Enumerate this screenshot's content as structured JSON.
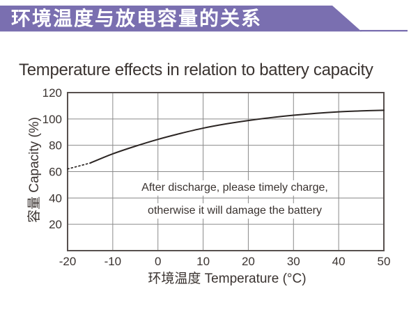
{
  "banner": {
    "label": "环境温度与放电容量的关系",
    "bg_color": "#7a6fb0",
    "text_color": "#ffffff"
  },
  "title": "Temperature effects in relation to battery capacity",
  "chart_data": {
    "type": "line",
    "title": "Temperature effects in relation to battery capacity",
    "xlabel": "环境温度 Temperature (°C)",
    "ylabel": "容量 Capacity (%)",
    "xlim": [
      -20,
      50
    ],
    "ylim": [
      0,
      120
    ],
    "x_ticks": [
      -20,
      -10,
      0,
      10,
      20,
      30,
      40,
      50
    ],
    "y_ticks": [
      120,
      100,
      80,
      60,
      40,
      20
    ],
    "grid": true,
    "legend": false,
    "series": [
      {
        "name": "capacity-vs-temperature",
        "x": [
          -20,
          -15,
          -10,
          -5,
          0,
          5,
          10,
          15,
          20,
          25,
          30,
          35,
          40,
          45,
          50
        ],
        "y": [
          62,
          66.5,
          73.5,
          79.3,
          84.5,
          89,
          93,
          96.2,
          98.8,
          101,
          102.8,
          104.3,
          105.4,
          106.1,
          106.6
        ],
        "dashed_until_x": -15,
        "line_style_note": "dotted from -20 to -15, solid above"
      }
    ],
    "annotations": [
      "After discharge, please timely charge,",
      "otherwise it will damage the battery"
    ]
  },
  "colors": {
    "accent": "#7a6fb0",
    "grid": "#8a8a8a",
    "plot_border": "#57504e",
    "curve": "#2b2523",
    "text": "#3a3330",
    "background": "#ffffff"
  }
}
